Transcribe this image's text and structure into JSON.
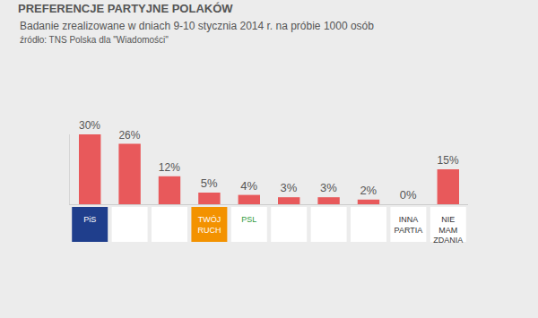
{
  "chart_data": {
    "type": "bar",
    "title": "PREFERENCJE PARTYJNE POLAKÓW",
    "subtitle": "Badanie zrealizowane w dniach 9-10 stycznia 2014 r. na próbie 1000 osób",
    "annotations": [
      "źródło: TNS Polska dla \"Wiadomości\""
    ],
    "categories": [
      "PiS",
      null,
      null,
      "TWÓJ RUCH",
      "PSL",
      null,
      null,
      null,
      "INNA PARTIA",
      "NIE MAM ZDANIA"
    ],
    "values": [
      30,
      26,
      12,
      5,
      4,
      3,
      3,
      2,
      0,
      15
    ],
    "value_labels": [
      "30%",
      "26%",
      "12%",
      "5%",
      "4%",
      "3%",
      "3%",
      "2%",
      "0%",
      "15%"
    ],
    "color": "#e8595b",
    "ylim": [
      0,
      30
    ],
    "grid": false,
    "data_labels": true,
    "tick_labels": "x"
  }
}
